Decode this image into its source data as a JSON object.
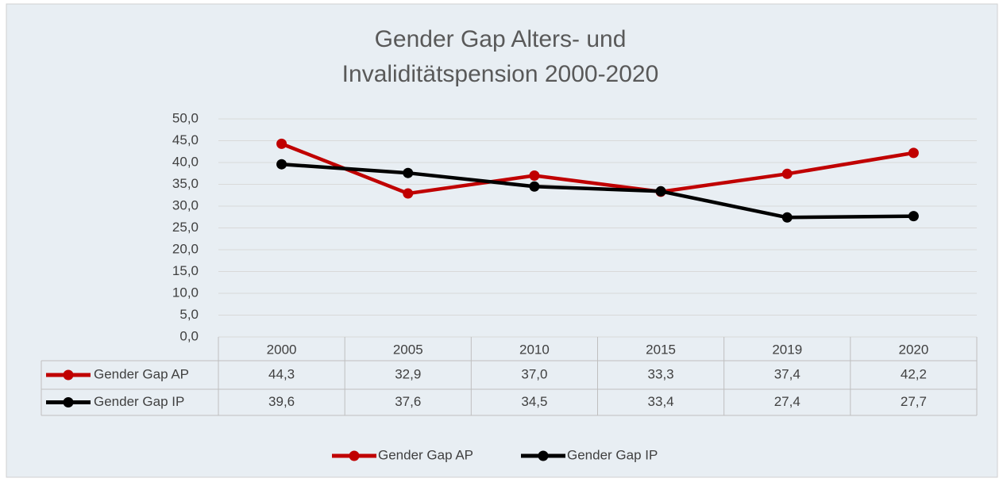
{
  "chart_data": {
    "type": "line",
    "title": "Gender Gap Alters- und Invaliditätspension 2000-2020",
    "categories": [
      "2000",
      "2005",
      "2010",
      "2015",
      "2019",
      "2020"
    ],
    "series": [
      {
        "name": "Gender Gap AP",
        "color": "#c00000",
        "values": [
          44.3,
          32.9,
          37.0,
          33.3,
          37.4,
          42.2
        ],
        "value_labels": [
          "44,3",
          "32,9",
          "37,0",
          "33,3",
          "37,4",
          "42,2"
        ]
      },
      {
        "name": "Gender Gap IP",
        "color": "#000000",
        "values": [
          39.6,
          37.6,
          34.5,
          33.4,
          27.4,
          27.7
        ],
        "value_labels": [
          "39,6",
          "37,6",
          "34,5",
          "33,4",
          "27,4",
          "27,7"
        ]
      }
    ],
    "ylim": [
      0,
      50
    ],
    "yticks": [
      {
        "value": 0,
        "label": "0,0"
      },
      {
        "value": 5,
        "label": "5,0"
      },
      {
        "value": 10,
        "label": "10,0"
      },
      {
        "value": 15,
        "label": "15,0"
      },
      {
        "value": 20,
        "label": "20,0"
      },
      {
        "value": 25,
        "label": "25,0"
      },
      {
        "value": 30,
        "label": "30,0"
      },
      {
        "value": 35,
        "label": "35,0"
      },
      {
        "value": 40,
        "label": "40,0"
      },
      {
        "value": 45,
        "label": "45,0"
      },
      {
        "value": 50,
        "label": "50,0"
      }
    ],
    "grid": true,
    "legend": "bottom",
    "data_table": true
  }
}
